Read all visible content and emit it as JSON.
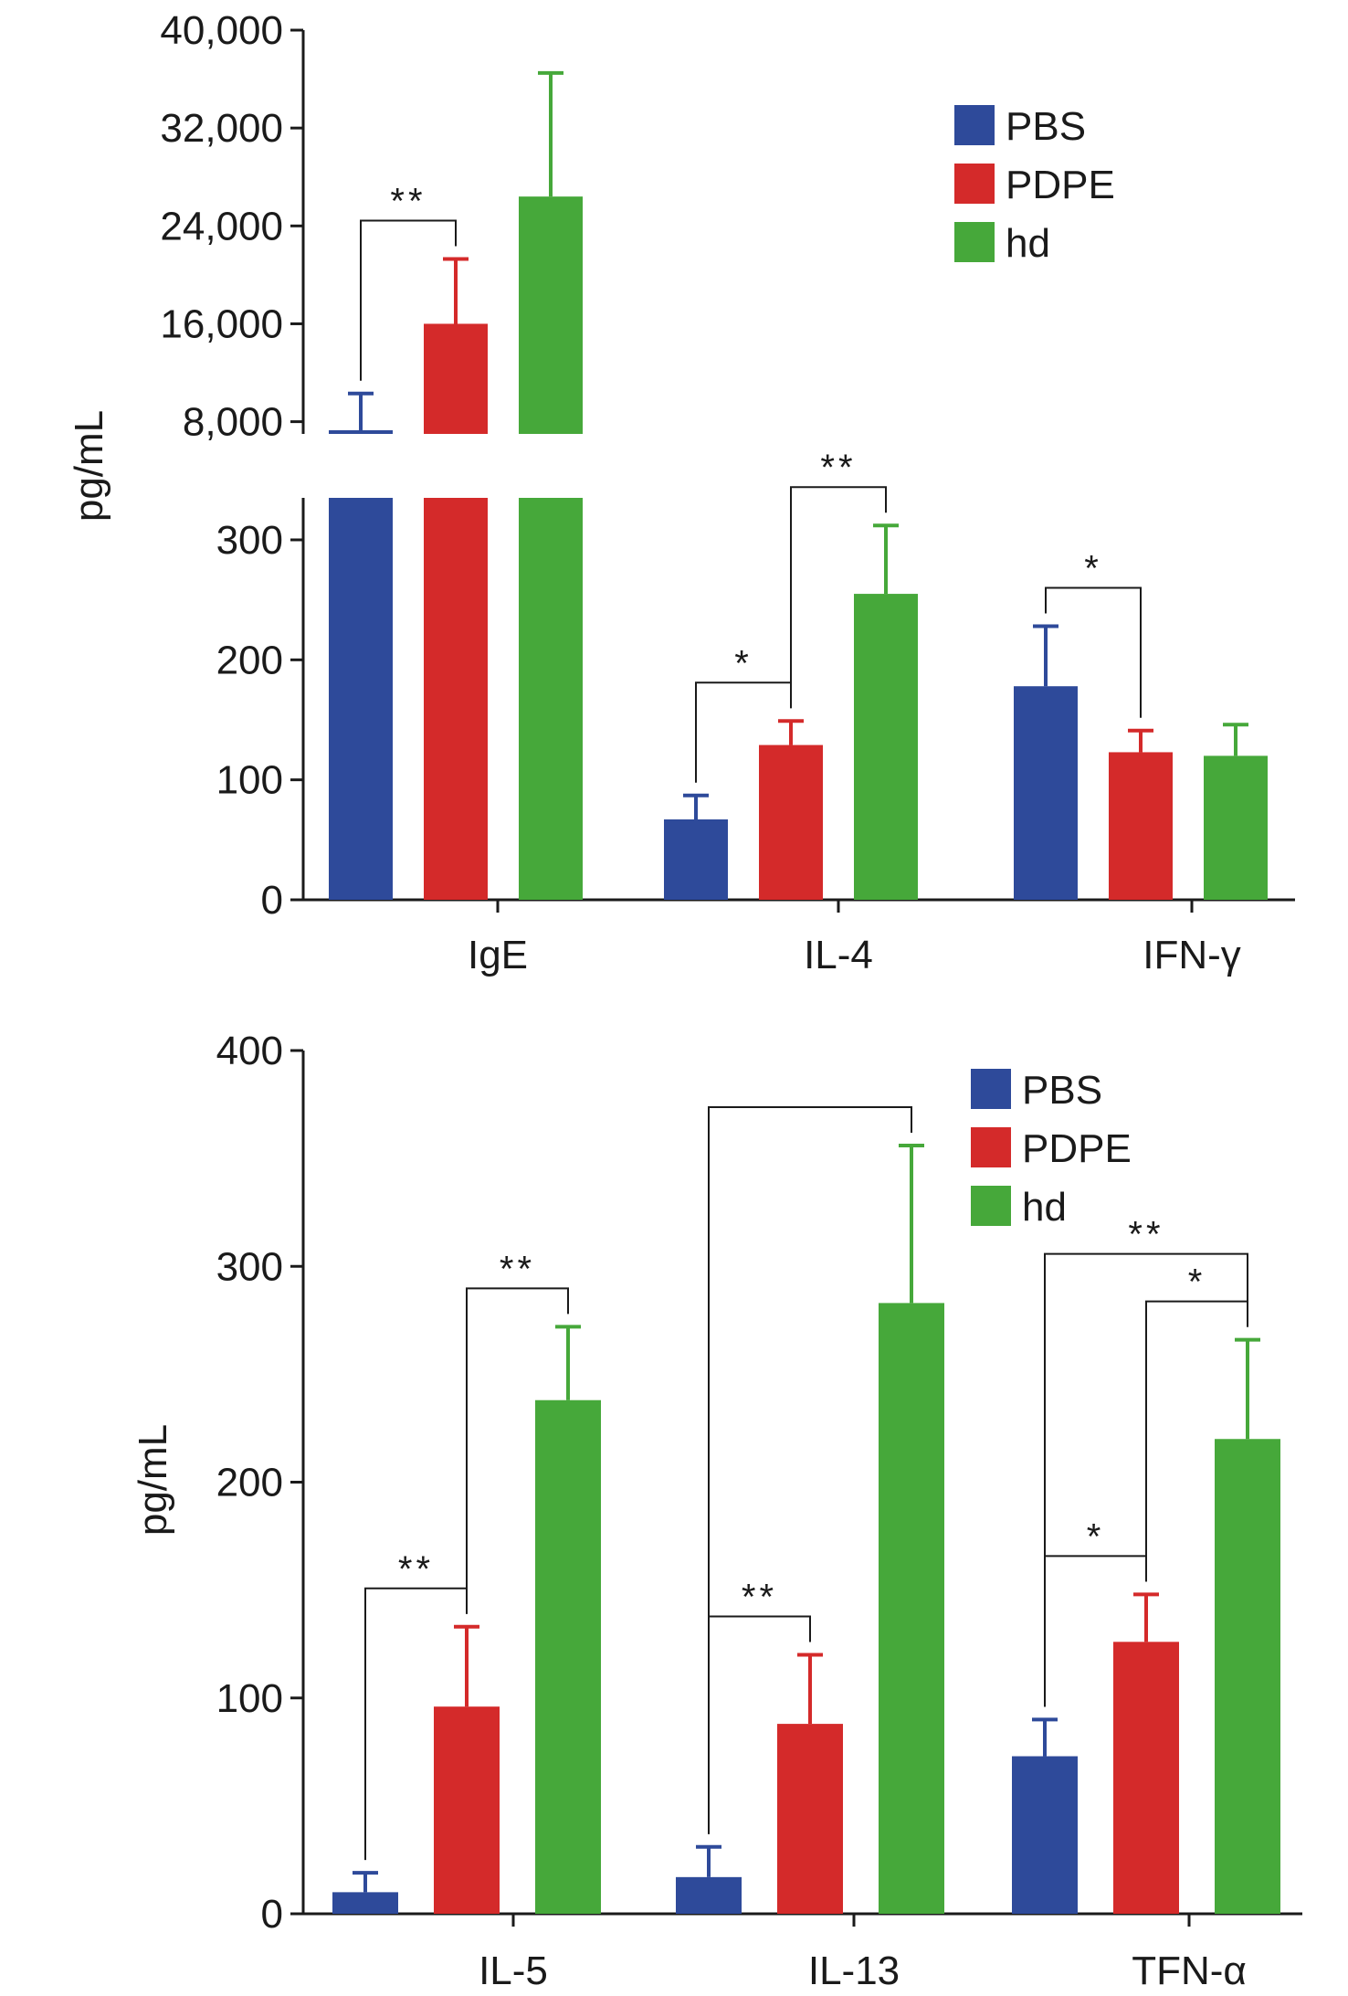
{
  "colors": {
    "PBS": "#2E4a9a",
    "PDPE": "#d42a2a",
    "hd": "#46a83a",
    "axis": "#1a1a1a"
  },
  "chart_data": [
    {
      "type": "bar",
      "broken_axis": true,
      "ylabel": "pg/mL",
      "categories": [
        "IgE",
        "IL-4",
        "IFN-γ"
      ],
      "legend": [
        "PBS",
        "PDPE",
        "hd"
      ],
      "legend_position": "top-right",
      "grid": false,
      "ylim_lower": [
        0,
        335
      ],
      "yticks_lower": [
        "0",
        "100",
        "200",
        "300"
      ],
      "yticks_lower_values": [
        0,
        100,
        200,
        300
      ],
      "ylim_upper": [
        7000,
        40000
      ],
      "yticks_upper": [
        "8,000",
        "16,000",
        "24,000",
        "32,000",
        "40,000"
      ],
      "yticks_upper_values": [
        8000,
        16000,
        24000,
        32000,
        40000
      ],
      "series": [
        {
          "name": "PBS",
          "values": [
            7300,
            67,
            178
          ],
          "errors": [
            3000,
            20,
            50
          ]
        },
        {
          "name": "PDPE",
          "values": [
            16000,
            129,
            123
          ],
          "errors": [
            5300,
            20,
            18
          ]
        },
        {
          "name": "hd",
          "values": [
            26400,
            255,
            120
          ],
          "errors": [
            10100,
            57,
            26
          ]
        }
      ],
      "significance": [
        {
          "category": 0,
          "from": 0,
          "to": 1,
          "label": "**"
        },
        {
          "category": 1,
          "from": 0,
          "to": 1,
          "label": "*"
        },
        {
          "category": 1,
          "from": 1,
          "to": 2,
          "label": "**"
        },
        {
          "category": 2,
          "from": 0,
          "to": 1,
          "label": "*"
        }
      ]
    },
    {
      "type": "bar",
      "ylabel": "pg/mL",
      "categories": [
        "IL-5",
        "IL-13",
        "TFN-α"
      ],
      "legend": [
        "PBS",
        "PDPE",
        "hd"
      ],
      "legend_position": "top-right",
      "grid": false,
      "ylim": [
        0,
        400
      ],
      "yticks": [
        "0",
        "100",
        "200",
        "300",
        "400"
      ],
      "ytick_values": [
        0,
        100,
        200,
        300,
        400
      ],
      "series": [
        {
          "name": "PBS",
          "values": [
            10,
            17,
            73
          ],
          "errors": [
            9,
            14,
            17
          ]
        },
        {
          "name": "PDPE",
          "values": [
            96,
            88,
            126
          ],
          "errors": [
            37,
            32,
            22
          ]
        },
        {
          "name": "hd",
          "values": [
            238,
            283,
            220
          ],
          "errors": [
            34,
            73,
            46
          ]
        }
      ],
      "significance": [
        {
          "category": 0,
          "from": 0,
          "to": 1,
          "label": "**"
        },
        {
          "category": 0,
          "from": 1,
          "to": 2,
          "label": "**"
        },
        {
          "category": 1,
          "from": 0,
          "to": 1,
          "label": "**"
        },
        {
          "category": 1,
          "from": 0,
          "to": 2,
          "label": ""
        },
        {
          "category": 2,
          "from": 0,
          "to": 1,
          "label": "*"
        },
        {
          "category": 2,
          "from": 1,
          "to": 2,
          "label": "*"
        },
        {
          "category": 2,
          "from": 0,
          "to": 2,
          "label": "**"
        }
      ]
    }
  ]
}
